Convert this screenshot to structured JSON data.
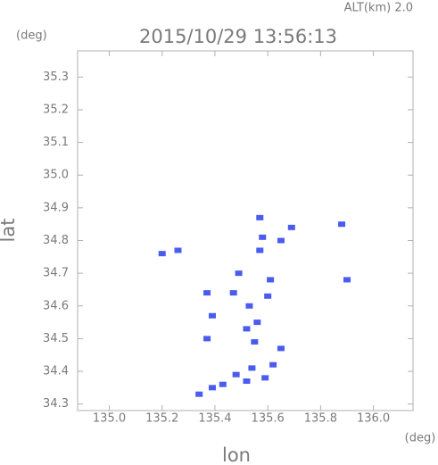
{
  "chart_data": {
    "type": "scatter",
    "title": "2015/10/29 13:56:13",
    "altitude_label": "ALT(km) 2.0",
    "y_unit": "(deg)",
    "x_unit": "(deg)",
    "xlabel": "lon",
    "ylabel": "lat",
    "xlim": [
      134.88,
      136.15
    ],
    "ylim": [
      34.28,
      35.38
    ],
    "xticks": [
      {
        "value": 135,
        "label": "135.0"
      },
      135.2,
      135.4,
      135.6,
      135.8,
      {
        "value": 136,
        "label": "136.0"
      }
    ],
    "yticks": [
      35.3,
      35.2,
      35.1,
      {
        "value": 35,
        "label": "35.0"
      },
      34.9,
      34.8,
      34.7,
      34.6,
      34.5,
      34.4,
      34.3
    ],
    "color": "#4a5cf0",
    "x": [
      135.2,
      135.26,
      135.57,
      135.69,
      135.88,
      135.58,
      135.65,
      135.57,
      135.9,
      135.61,
      135.49,
      135.37,
      135.47,
      135.53,
      135.6,
      135.39,
      135.56,
      135.52,
      135.55,
      135.37,
      135.65,
      135.62,
      135.54,
      135.59,
      135.52,
      135.48,
      135.43,
      135.39,
      135.34
    ],
    "values": [
      34.76,
      34.77,
      34.87,
      34.84,
      34.85,
      34.81,
      34.8,
      34.77,
      34.68,
      34.68,
      34.7,
      34.64,
      34.64,
      34.6,
      34.63,
      34.57,
      34.55,
      34.53,
      34.49,
      34.5,
      34.47,
      34.42,
      34.41,
      34.38,
      34.37,
      34.39,
      34.36,
      34.35,
      34.33
    ]
  }
}
